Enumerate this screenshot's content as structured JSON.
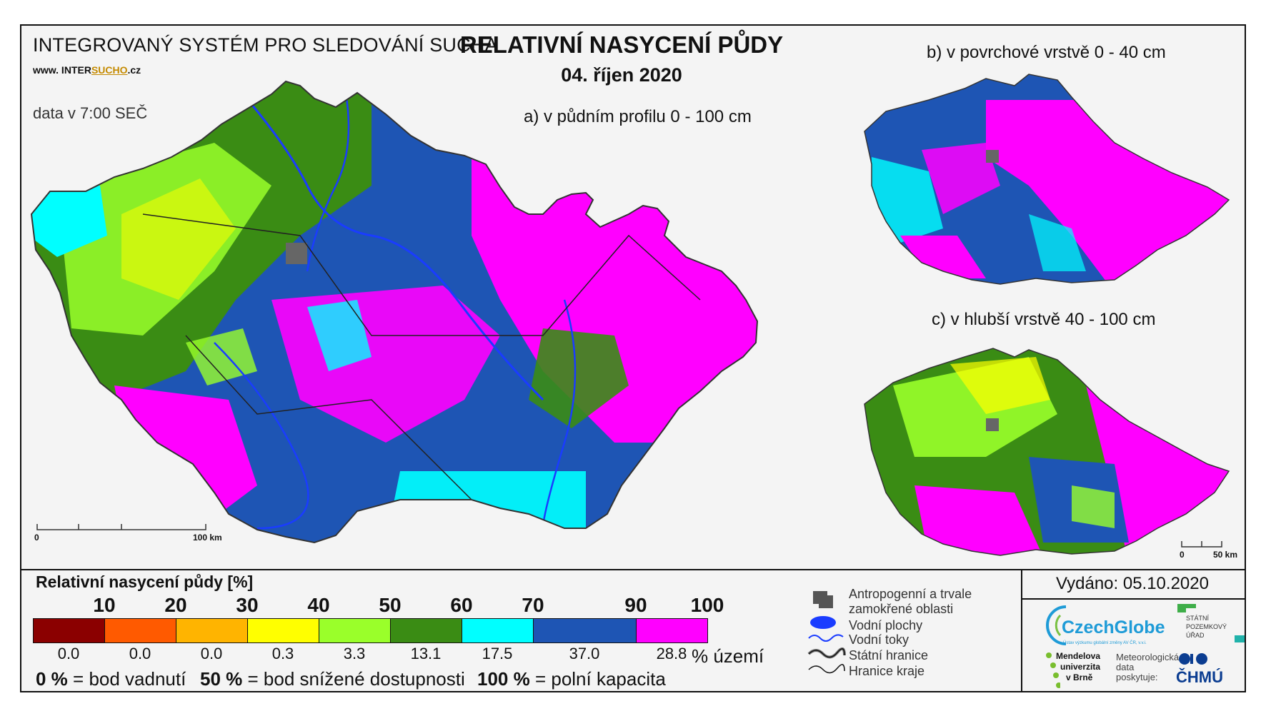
{
  "system_title": "INTEGROVANÝ SYSTÉM PRO SLEDOVÁNÍ SUCHA",
  "website_prefix": "www. INTER",
  "website_mid": "SUCHO",
  "website_suffix": ".cz",
  "data_time": "data v 7:00 SEČ",
  "title": "RELATIVNÍ NASYCENÍ PŮDY",
  "date": "04. říjen 2020",
  "map_a_title": "a) v půdním profilu 0 - 100 cm",
  "map_b_title": "b) v povrchové vrstvě 0 - 40 cm",
  "map_c_title": "c) v hlubší vrstvě 40 - 100 cm",
  "scale_main": {
    "zero": "0",
    "end": "100 km"
  },
  "scale_small": {
    "zero": "0",
    "end": "50 km"
  },
  "legend": {
    "title": "Relativní nasycení půdy [%]",
    "breaks": [
      "10",
      "20",
      "30",
      "40",
      "50",
      "60",
      "70",
      "90",
      "100"
    ],
    "classes": [
      {
        "color": "#8b0000",
        "share": "0.0"
      },
      {
        "color": "#ff5a00",
        "share": "0.0"
      },
      {
        "color": "#ffb400",
        "share": "0.0"
      },
      {
        "color": "#ffff00",
        "share": "0.3"
      },
      {
        "color": "#9aff2a",
        "share": "3.3"
      },
      {
        "color": "#3a8c14",
        "share": "13.1"
      },
      {
        "color": "#00ffff",
        "share": "17.5"
      },
      {
        "color": "#1e55b4",
        "share": "37.0"
      },
      {
        "color": "#ff00ff",
        "share": "28.8"
      }
    ],
    "share_units": "% území",
    "notes": [
      {
        "value": "0 %",
        "text": " = bod vadnutí"
      },
      {
        "value": "50 %",
        "text": " = bod snížené dostupnosti"
      },
      {
        "value": "100 %",
        "text": " = polní kapacita"
      }
    ]
  },
  "map_legend": {
    "anthropogenic": "Antropogenní a trvale zamokřené oblasti",
    "water_bodies": "Vodní plochy",
    "rivers": "Vodní toky",
    "state_border": "Státní hranice",
    "region_border": "Hranice kraje"
  },
  "issued": "Vydáno: 05.10.2020",
  "logos": {
    "czechglobe": "CzechGlobe",
    "czechglobe_sub": "Ústav výzkumu globální změny AV ČR, v.v.i.",
    "spu": "STÁTNÍ POZEMKOVÝ ÚŘAD",
    "mendelu_1": "Mendelova",
    "mendelu_2": "univerzita",
    "mendelu_3": "v Brně",
    "chmu_note_1": "Meteorologická",
    "chmu_note_2": "data",
    "chmu_note_3": "poskytuje:",
    "chmu": "ČHMÚ"
  }
}
